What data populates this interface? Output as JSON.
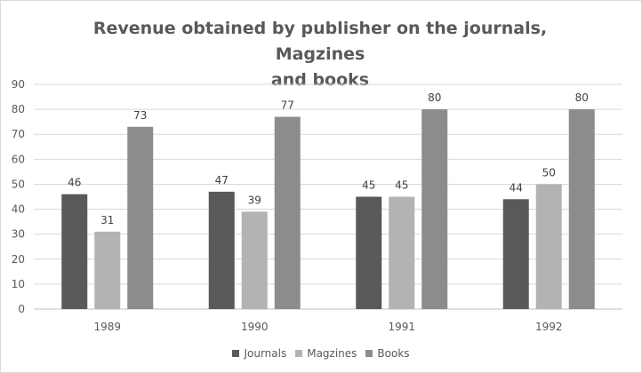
{
  "chart_data": {
    "type": "bar",
    "title": [
      "Revenue obtained by publisher on the journals, Magzines",
      "and books"
    ],
    "categories": [
      "1989",
      "1990",
      "1991",
      "1992"
    ],
    "series": [
      {
        "name": "Journals",
        "values": [
          46,
          47,
          45,
          44
        ],
        "color": "#595959"
      },
      {
        "name": "Magzines",
        "values": [
          31,
          39,
          45,
          50
        ],
        "color": "#b3b3b3"
      },
      {
        "name": "Books",
        "values": [
          73,
          77,
          80,
          80
        ],
        "color": "#8c8c8c"
      }
    ],
    "ylim": [
      0,
      90
    ],
    "yticks": [
      0,
      10,
      20,
      30,
      40,
      50,
      60,
      70,
      80,
      90
    ],
    "grid": true,
    "data_labels": true,
    "legend": "bottom"
  }
}
